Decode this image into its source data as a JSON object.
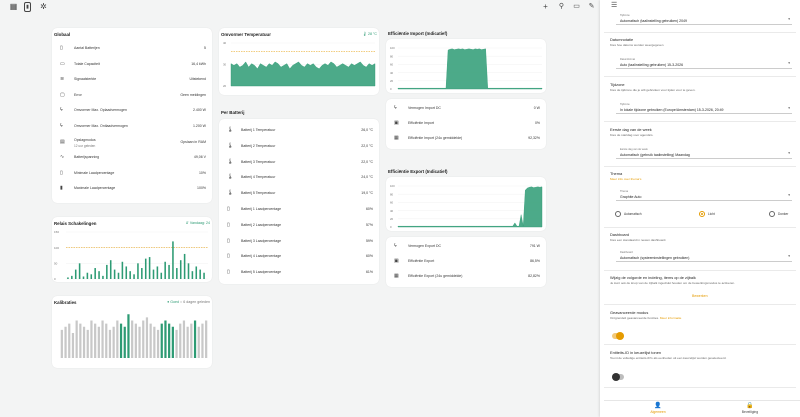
{
  "topbar": {
    "icons": [
      "dashboard-icon",
      "battery-icon",
      "gear-icon"
    ],
    "right_icons": [
      "plus-icon",
      "search-icon",
      "chat-icon",
      "pencil-icon"
    ]
  },
  "global": {
    "title": "Globaal",
    "rows": [
      {
        "icon": "battery-icon",
        "label": "Aantal Batterijen",
        "value": "5"
      },
      {
        "icon": "capacity-icon",
        "label": "Totale Capaciteit",
        "value": "16,4 kWh"
      },
      {
        "icon": "wifi-icon",
        "label": "Signaalsterkte",
        "value": "Uitstekend"
      },
      {
        "icon": "error-icon",
        "label": "Error",
        "value": "Geen meldingen"
      },
      {
        "icon": "bolt-icon",
        "label": "Omvormer Max. Oplaadvermogen",
        "value": "2.400 W"
      },
      {
        "icon": "bolt-icon",
        "label": "Omvormer Max. Ontlaadvermogen",
        "value": "1.200 W"
      },
      {
        "icon": "storage-icon",
        "label": "Opslagmodus",
        "sublabel": "12 uur geleden",
        "value": "Opslaan in RAM"
      },
      {
        "icon": "wave-icon",
        "label": "Batterijspanning",
        "value": "49,06 V"
      },
      {
        "icon": "battery-low-icon",
        "label": "Minimale Laadpercentage",
        "value": "10%"
      },
      {
        "icon": "battery-full-icon",
        "label": "Maximale Laadpercentage",
        "value": "100%"
      }
    ]
  },
  "relais": {
    "title": "Relais Schakelingen",
    "badge": "Vandaag: 24",
    "chart_data": {
      "type": "bar",
      "ylim": [
        0,
        150
      ],
      "yticks": [
        "150",
        "100",
        "50",
        "0"
      ],
      "reference_line": 100,
      "values": [
        5,
        10,
        30,
        50,
        8,
        20,
        15,
        35,
        25,
        10,
        45,
        60,
        30,
        20,
        55,
        40,
        25,
        15,
        50,
        35,
        65,
        70,
        30,
        40,
        20,
        55,
        45,
        120,
        35,
        60,
        80,
        50,
        25,
        40,
        30,
        20
      ]
    }
  },
  "kalibraties": {
    "title": "Kalibraties",
    "badge_ok": "Goed",
    "badge_grey": "6 dagen geleden",
    "chart_data": {
      "type": "bar",
      "values": [
        45,
        50,
        55,
        40,
        60,
        55,
        50,
        45,
        60,
        55,
        50,
        60,
        55,
        45,
        50,
        60,
        55,
        50,
        70,
        60,
        55,
        50,
        60,
        65,
        55,
        50,
        45,
        55,
        60,
        55,
        50,
        45,
        55,
        60,
        50,
        55,
        60,
        50,
        55,
        60
      ],
      "highlight_indices": [
        16,
        17,
        18,
        27,
        28,
        29,
        30,
        36
      ]
    }
  },
  "omvormer": {
    "title": "Omvormer Temperatuur",
    "badge": "28 °C",
    "chart_data": {
      "type": "area",
      "yticks": [
        "40",
        "30",
        "20"
      ],
      "reference_line": 35,
      "values": [
        28,
        27,
        28,
        26,
        27,
        29,
        26,
        28,
        27,
        25,
        28,
        27,
        26,
        28,
        27,
        29,
        28,
        26,
        27,
        28,
        25,
        27,
        28,
        29,
        27,
        26,
        28,
        27,
        28,
        26,
        25,
        27,
        28,
        27,
        29,
        28,
        26,
        27,
        28,
        27,
        26,
        28,
        27,
        28,
        29,
        27,
        26,
        28,
        27,
        28
      ]
    }
  },
  "per_batterij": {
    "title": "Per Batterij",
    "rows": [
      {
        "icon": "thermometer-icon",
        "label": "Batterij 1 Temperatuur",
        "value": "26,0 °C"
      },
      {
        "icon": "thermometer-icon",
        "label": "Batterij 2 Temperatuur",
        "value": "22,0 °C"
      },
      {
        "icon": "thermometer-icon",
        "label": "Batterij 3 Temperatuur",
        "value": "22,0 °C"
      },
      {
        "icon": "thermometer-icon",
        "label": "Batterij 4 Temperatuur",
        "value": "24,0 °C"
      },
      {
        "icon": "thermometer-icon",
        "label": "Batterij 5 Temperatuur",
        "value": "19,0 °C"
      },
      {
        "icon": "battery-icon",
        "label": "Batterij 1 Laadpercentage",
        "value": "60%"
      },
      {
        "icon": "battery-icon",
        "label": "Batterij 2 Laadpercentage",
        "value": "57%"
      },
      {
        "icon": "battery-icon",
        "label": "Batterij 3 Laadpercentage",
        "value": "59%"
      },
      {
        "icon": "battery-icon",
        "label": "Batterij 4 Laadpercentage",
        "value": "60%"
      },
      {
        "icon": "battery-icon",
        "label": "Batterij 5 Laadpercentage",
        "value": "61%"
      }
    ]
  },
  "import": {
    "title": "Efficiëntie Import (Indicatief)",
    "chart_data": {
      "type": "area",
      "yticks": [
        "100",
        "80",
        "60",
        "40",
        "20",
        "0"
      ],
      "values": [
        2,
        2,
        2,
        2,
        2,
        2,
        2,
        2,
        2,
        2,
        2,
        2,
        2,
        2,
        2,
        2,
        2,
        2,
        2,
        2,
        2,
        2,
        2,
        2,
        95,
        97,
        98,
        96,
        97,
        98,
        97,
        98,
        96,
        97,
        98,
        97,
        96,
        98,
        97,
        98,
        96,
        97,
        98,
        2,
        2,
        2,
        2,
        2,
        2,
        2,
        2,
        2,
        2,
        2,
        2,
        2,
        2,
        2,
        2,
        2,
        2,
        2,
        2,
        2,
        2,
        2,
        2,
        2,
        2,
        2
      ]
    },
    "rows": [
      {
        "icon": "bolt-icon",
        "label": "Vermogen Import DC",
        "value": "0 W"
      },
      {
        "icon": "efficiency-icon",
        "label": "Efficiëntie Import",
        "value": "0%"
      },
      {
        "icon": "calculator-icon",
        "label": "Efficiëntie Import (24u gemiddelde)",
        "value": "92,32%"
      }
    ]
  },
  "export": {
    "title": "Efficiëntie Export (Indicatief)",
    "chart_data": {
      "type": "area",
      "yticks": [
        "100",
        "80",
        "60",
        "40",
        "20",
        "0"
      ],
      "values": [
        2,
        2,
        2,
        2,
        2,
        2,
        2,
        2,
        2,
        2,
        2,
        2,
        2,
        2,
        2,
        2,
        2,
        2,
        2,
        2,
        2,
        2,
        2,
        2,
        2,
        2,
        2,
        2,
        2,
        2,
        2,
        2,
        2,
        2,
        2,
        2,
        2,
        2,
        2,
        2,
        2,
        2,
        2,
        2,
        2,
        2,
        2,
        2,
        2,
        2,
        2,
        2,
        2,
        2,
        2,
        2,
        10,
        2,
        2,
        30,
        2,
        90,
        95,
        97,
        98,
        96,
        97,
        98,
        97,
        98
      ]
    },
    "rows": [
      {
        "icon": "bolt-icon",
        "label": "Vermogen Export DC",
        "value": "791 W"
      },
      {
        "icon": "efficiency-icon",
        "label": "Efficiëntie Export",
        "value": "86,5%"
      },
      {
        "icon": "calculator-icon",
        "label": "Efficiëntie Export (24u gemiddelde)",
        "value": "82,82%"
      }
    ]
  },
  "panel": {
    "tijdzone_top": {
      "label": "Tijdzone",
      "value": "Automatisch (taalinstelling gebruiken) 2049"
    },
    "datumnotatie": {
      "title": "Datumnotatie",
      "desc": "Kies hoe datums worden weergegeven",
      "select_label": "Datumformat",
      "select_value": "Auto (taalinstelling gebruiken) 15-3-2026"
    },
    "tijdzone": {
      "title": "Tijdzone",
      "desc": "Kies de tijdzone die je wilt gebruiken voor tijden voor te geven.",
      "select_label": "Tijdzone",
      "select_value": "In lokale tijdzone gebruiken (Europe/Amsterdam) 15-3-2026, 20:49"
    },
    "eerste_dag": {
      "title": "Eerste dag van de week",
      "desc": "Kies de startdag voor agenda's.",
      "select_label": "Eerste dag van de week",
      "select_value": "Automatisch (gebruik taalinstelling) Maandag"
    },
    "thema": {
      "title": "Thema",
      "link": "Meer info over thema's",
      "select_label": "Thema",
      "select_value": "Graphite Auto",
      "options": [
        "Automatisch",
        "Licht",
        "Donker"
      ],
      "selected": 1
    },
    "dashboard": {
      "title": "Dashboard",
      "desc": "Kies een standaard in newen dashboard.",
      "select_label": "Dashboard",
      "select_value": "Automatisch (systeeminstellingen gebruiken)"
    },
    "wijzig": {
      "title": "Wijzig de volgorde en indeling, items op de zijbalk",
      "desc": "Je kunt ook de knop van de zijbalk ingedrukt houden om de bewerkingsmodus te activeren.",
      "button": "Bewerken"
    },
    "geavanceerd": {
      "title": "Geavanceerde modus",
      "desc": "Ontgrendelt geavanceerde functies.",
      "link": "Meer informatie",
      "on": true
    },
    "entiteits": {
      "title": "Entiteits-ID in keuzelijst tonen",
      "desc": "Toont de volledige entiteits-ID's als eenheden uit een keuzelijst worden geselecteerd.",
      "on": false
    },
    "bottom_nav": [
      {
        "icon": "user-icon",
        "label": "Algemeen",
        "active": true
      },
      {
        "icon": "lock-icon",
        "label": "Beveiliging",
        "active": false
      }
    ]
  },
  "colors": {
    "accent": "#2d9b74",
    "orange": "#e59b00",
    "grey_bar": "#c8c8c8"
  }
}
